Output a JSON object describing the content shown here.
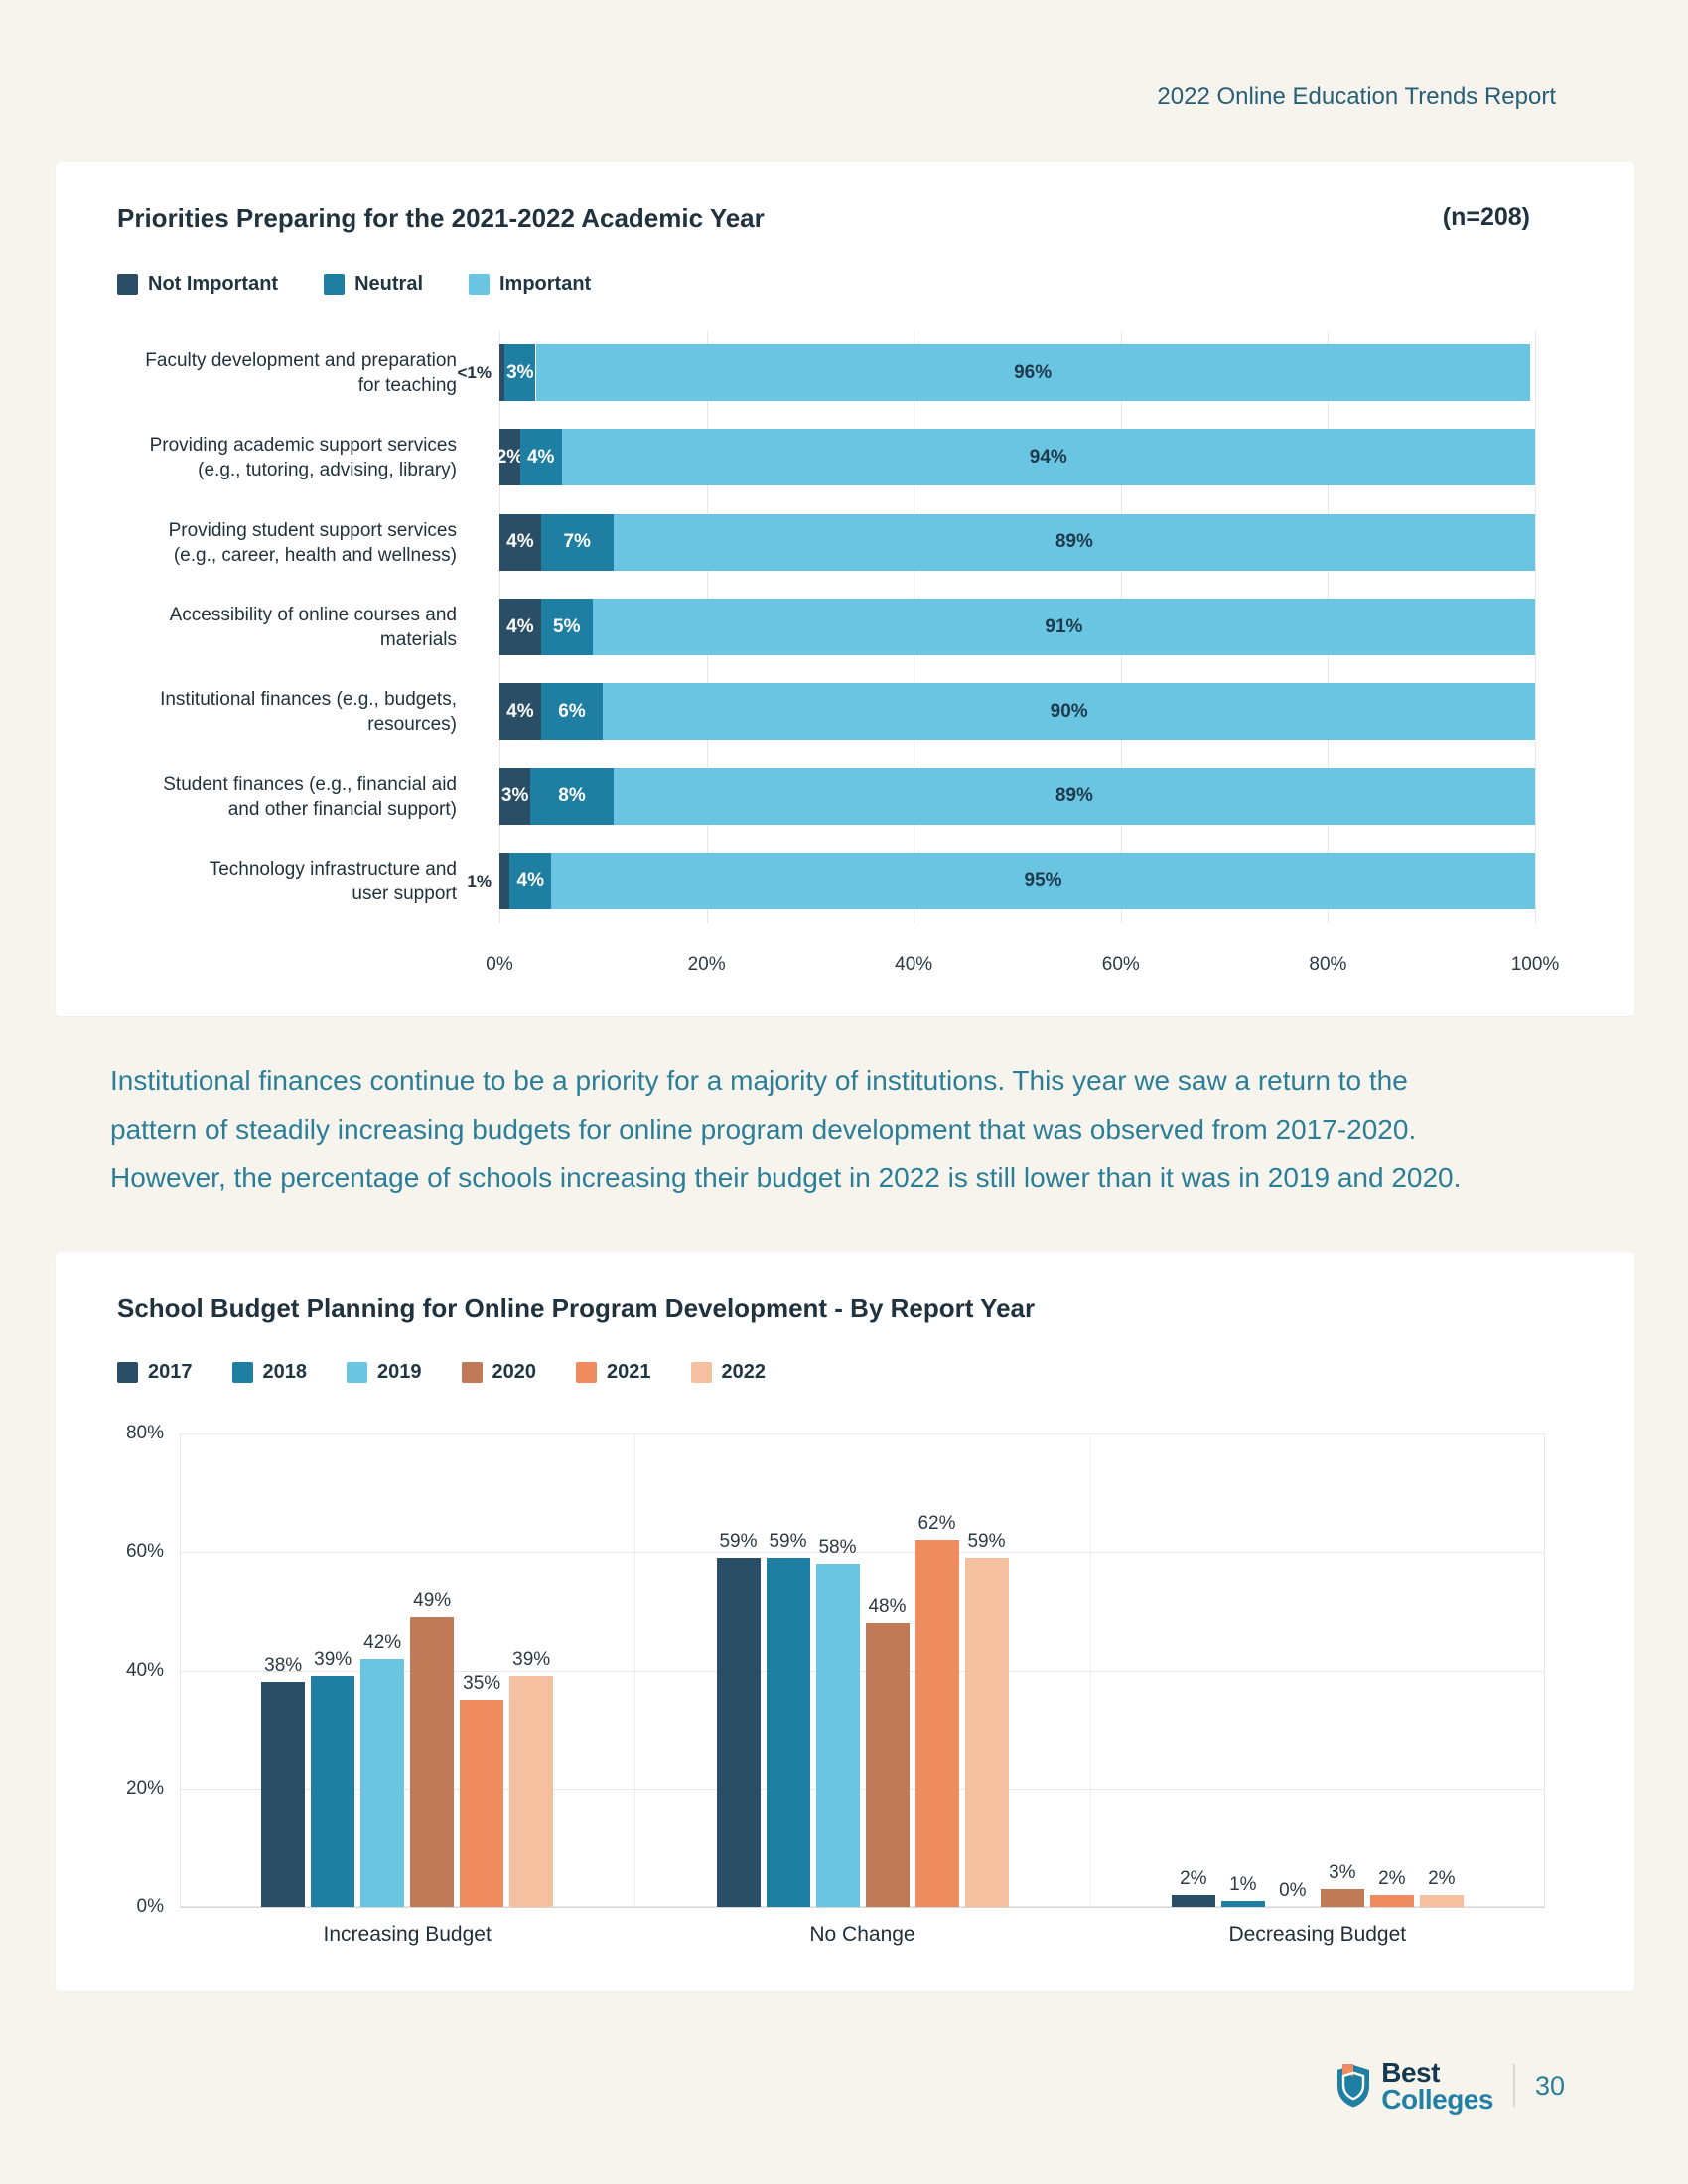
{
  "page": {
    "header": "2022 Online Education Trends Report",
    "paragraph": "Institutional finances continue to be a priority for a majority of institutions. This year we saw a return to the pattern of steadily increasing budgets for online program development that was observed from 2017-2020. However, the percentage of schools increasing their budget in 2022 is still lower than it was in 2019 and 2020."
  },
  "footer": {
    "brand_line1": "Best",
    "brand_line2": "Colleges",
    "page_number": "30"
  },
  "colors": {
    "background": "#f7f4ee",
    "navy": "#2a4e66",
    "teal": "#1f7fa2",
    "light_blue": "#69c5e1",
    "terracotta": "#c07a58",
    "orange": "#ee8c5f",
    "peach": "#f4c09f",
    "paragraph_teal": "#2a7e97"
  },
  "chart_data": [
    {
      "type": "bar",
      "orientation": "horizontal-stacked",
      "title": "Priorities Preparing for the 2021-2022 Academic Year",
      "sample": "(n=208)",
      "legend": [
        "Not Important",
        "Neutral",
        "Important"
      ],
      "legend_colors": [
        "#2a4e66",
        "#1f7fa2",
        "#69c5e1"
      ],
      "categories": [
        "Faculty development and preparation\nfor teaching",
        "Providing academic support services\n(e.g., tutoring, advising, library)",
        "Providing student support services\n(e.g., career, health and wellness)",
        "Accessibility of online courses and\nmaterials",
        "Institutional finances (e.g., budgets,\nresources)",
        "Student finances (e.g., financial aid\nand other financial support)",
        "Technology infrastructure and\nuser support"
      ],
      "series": [
        {
          "name": "Not Important",
          "values": [
            0.5,
            2,
            4,
            4,
            4,
            3,
            1
          ],
          "labels": [
            "<1%",
            "2%",
            "4%",
            "4%",
            "4%",
            "3%",
            "1%"
          ]
        },
        {
          "name": "Neutral",
          "values": [
            3,
            4,
            7,
            5,
            6,
            8,
            4
          ],
          "labels": [
            "3%",
            "4%",
            "7%",
            "5%",
            "6%",
            "8%",
            "4%"
          ]
        },
        {
          "name": "Important",
          "values": [
            96,
            94,
            89,
            91,
            90,
            89,
            95
          ],
          "labels": [
            "96%",
            "94%",
            "89%",
            "91%",
            "90%",
            "89%",
            "95%"
          ]
        }
      ],
      "x_ticks": [
        "0%",
        "20%",
        "40%",
        "60%",
        "80%",
        "100%"
      ],
      "xlim": [
        0,
        100
      ],
      "grid": "vertical"
    },
    {
      "type": "bar",
      "orientation": "vertical-grouped",
      "title": "School Budget Planning for Online Program Development - By Report Year",
      "categories": [
        "Increasing Budget",
        "No Change",
        "Decreasing Budget"
      ],
      "series": [
        {
          "name": "2017",
          "color": "#2a4e66",
          "values": [
            38,
            59,
            2
          ]
        },
        {
          "name": "2018",
          "color": "#1f7fa2",
          "values": [
            39,
            59,
            1
          ]
        },
        {
          "name": "2019",
          "color": "#69c5e1",
          "values": [
            42,
            58,
            0
          ]
        },
        {
          "name": "2020",
          "color": "#c07a58",
          "values": [
            49,
            48,
            3
          ]
        },
        {
          "name": "2021",
          "color": "#ee8c5f",
          "values": [
            35,
            62,
            2
          ]
        },
        {
          "name": "2022",
          "color": "#f4c09f",
          "values": [
            39,
            59,
            2
          ]
        }
      ],
      "value_labels": [
        [
          "38%",
          "39%",
          "42%",
          "49%",
          "35%",
          "39%"
        ],
        [
          "59%",
          "59%",
          "58%",
          "48%",
          "62%",
          "59%"
        ],
        [
          "2%",
          "1%",
          "0%",
          "3%",
          "2%",
          "2%"
        ]
      ],
      "y_ticks": [
        "0%",
        "20%",
        "40%",
        "60%",
        "80%"
      ],
      "ylim": [
        0,
        80
      ],
      "grid": "horizontal"
    }
  ]
}
